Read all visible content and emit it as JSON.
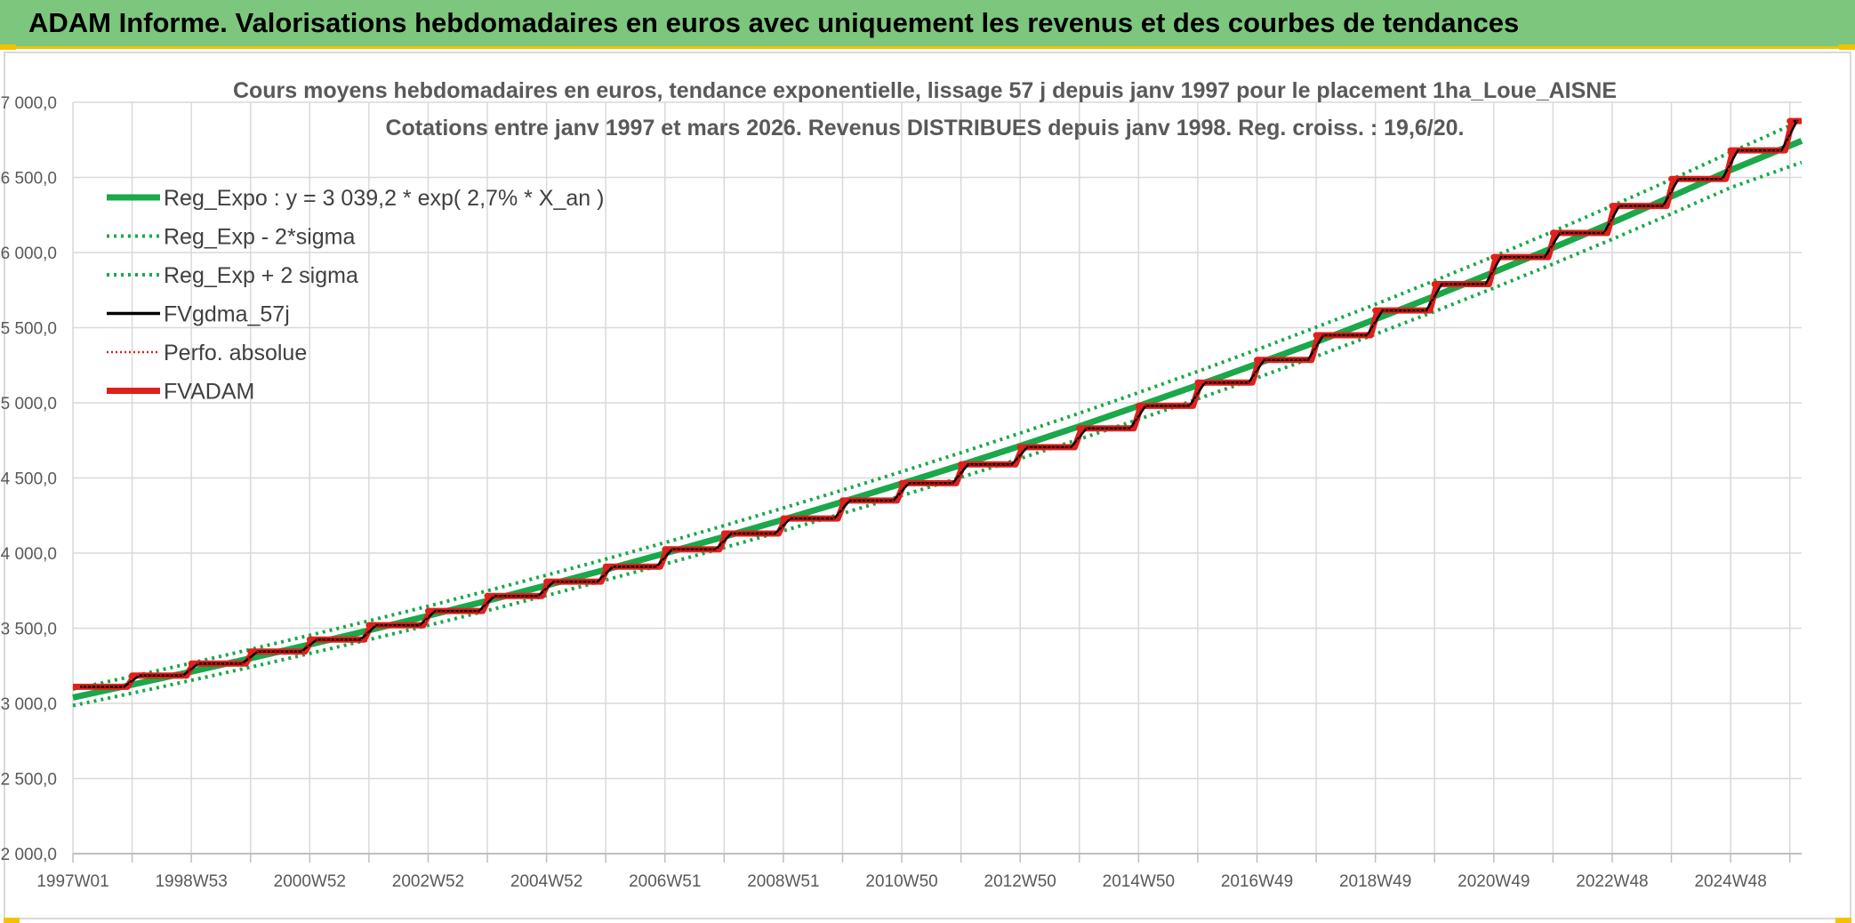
{
  "banner": {
    "title": "ADAM Informe. Valorisations hebdomadaires en euros avec uniquement les revenus et des courbes de tendances"
  },
  "colors": {
    "banner_bg": "#7dc67d",
    "accent_yellow": "#f2c200",
    "reg_expo": "#1aa84a",
    "sigma_bands": "#1aa84a",
    "fvgdma": "#000000",
    "perfo": "#e0201b",
    "fvadam": "#e0201b",
    "grid": "#d9d9d9"
  },
  "chart_data": {
    "type": "line",
    "title_line1": "Cours moyens hebdomadaires en euros, tendance exponentielle, lissage 57 j depuis janv 1997 pour le placement 1ha_Loue_AISNE",
    "title_line2": "Cotations entre janv 1997 et mars 2026. Revenus DISTRIBUES depuis janv 1998. Reg. croiss. : 19,6/20.",
    "x_range": [
      "1997W01",
      "2026W12"
    ],
    "x_tick_labels": [
      "1997W01",
      "1998W53",
      "2000W52",
      "2002W52",
      "2004W52",
      "2006W51",
      "2008W51",
      "2010W50",
      "2012W50",
      "2014W50",
      "2016W49",
      "2018W49",
      "2020W49",
      "2022W48",
      "2024W48"
    ],
    "y_tick_labels": [
      "2 000,0",
      "2 500,0",
      "3 000,0",
      "3 500,0",
      "4 000,0",
      "4 500,0",
      "5 000,0",
      "5 500,0",
      "6 000,0",
      "6 500,0",
      "7 000,0"
    ],
    "ylim": [
      2000,
      7000
    ],
    "grid": true,
    "legend_position": "top-left",
    "series": [
      {
        "name": "Reg_Expo : y = 3 039,2 * exp( 2,7% *  X_an )",
        "style": "solid-thick",
        "color": "#1aa84a",
        "values": [
          3039,
          3124,
          3211,
          3300,
          3392,
          3486,
          3583,
          3683,
          3785,
          3890,
          3998,
          4109,
          4223,
          4341,
          4462,
          4586,
          4713,
          4844,
          4979,
          5117,
          5259,
          5405,
          5556,
          5710,
          5869,
          6032,
          6199,
          6372,
          6549,
          6743
        ]
      },
      {
        "name": "Reg_Exp - 2*sigma",
        "style": "dotted",
        "color": "#1aa84a",
        "values": [
          2985,
          3068,
          3153,
          3241,
          3332,
          3424,
          3519,
          3617,
          3718,
          3821,
          3927,
          4036,
          4148,
          4264,
          4382,
          4504,
          4629,
          4758,
          4890,
          5026,
          5166,
          5309,
          5457,
          5608,
          5764,
          5924,
          6089,
          6258,
          6432,
          6600
        ]
      },
      {
        "name": "Reg_Exp + 2 sigma",
        "style": "dotted",
        "color": "#1aa84a",
        "values": [
          3094,
          3180,
          3268,
          3359,
          3453,
          3549,
          3647,
          3749,
          3853,
          3960,
          4070,
          4183,
          4300,
          4419,
          4542,
          4668,
          4798,
          4931,
          5068,
          5209,
          5354,
          5503,
          5655,
          5813,
          5974,
          6140,
          6311,
          6486,
          6667,
          6880
        ]
      },
      {
        "name": "FVgdma_57j",
        "style": "solid",
        "color": "#000000"
      },
      {
        "name": "Perfo. absolue",
        "style": "dotted-thin",
        "color": "#e0201b"
      },
      {
        "name": "FVADAM",
        "style": "step-thick",
        "color": "#e0201b",
        "year_levels": [
          3110,
          3185,
          3265,
          3345,
          3425,
          3520,
          3615,
          3715,
          3810,
          3910,
          4025,
          4130,
          4230,
          4350,
          4465,
          4590,
          4705,
          4830,
          4980,
          5135,
          5285,
          5450,
          5615,
          5790,
          5970,
          6130,
          6310,
          6490,
          6680,
          6875
        ]
      }
    ]
  }
}
